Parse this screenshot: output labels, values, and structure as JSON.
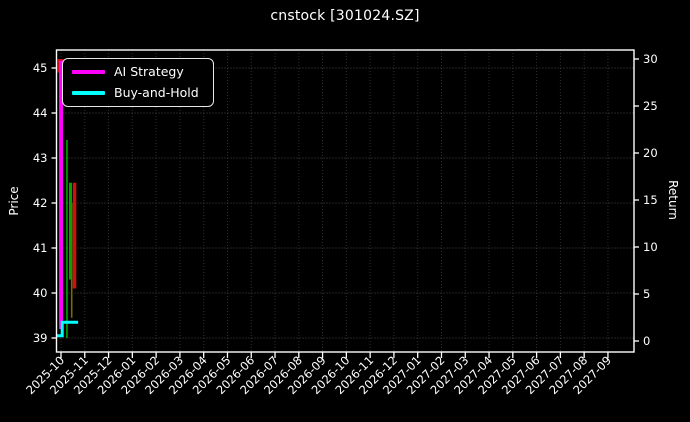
{
  "window": {
    "title": "cnstock [301024.SZ]"
  },
  "chart_data": {
    "type": "candlestick+line",
    "title": "cnstock [301024.SZ]",
    "background_color": "#000000",
    "text_color": "#ffffff",
    "grid": true,
    "grid_color_h": "#4a4a4a",
    "grid_color_v": "#2e2e2e",
    "spine_color": "#ffffff",
    "x_axis": {
      "rotation_deg": 45,
      "tick_labels": [
        "2025-10",
        "2025-11",
        "2025-12",
        "2026-01",
        "2026-02",
        "2026-03",
        "2026-04",
        "2026-05",
        "2026-06",
        "2026-07",
        "2026-08",
        "2026-09",
        "2026-10",
        "2026-11",
        "2026-12",
        "2027-01",
        "2027-02",
        "2027-03",
        "2027-04",
        "2027-05",
        "2027-06",
        "2027-07",
        "2027-08",
        "2027-09"
      ]
    },
    "y_left": {
      "label": "Price",
      "ticks": [
        39,
        40,
        41,
        42,
        43,
        44,
        45
      ],
      "range": [
        38.7,
        45.4
      ]
    },
    "y_right": {
      "label": "Return",
      "ticks": [
        0,
        5,
        10,
        15,
        20,
        25,
        30
      ],
      "range": [
        -1.2,
        31.0
      ]
    },
    "legend": {
      "position": "upper-left",
      "items": [
        {
          "label": "AI Strategy",
          "color": "#ff00ff"
        },
        {
          "label": "Buy-and-Hold",
          "color": "#00ffff"
        }
      ]
    },
    "series": [
      {
        "name": "AI Strategy",
        "color": "#ff00ff",
        "width": 4,
        "axis": "left",
        "points": [
          [
            0.0,
            39.2
          ],
          [
            0.0,
            45.12
          ],
          [
            0.75,
            45.12
          ]
        ]
      },
      {
        "name": "Buy-and-Hold",
        "color": "#00ffff",
        "width": 3,
        "axis": "left",
        "points": [
          [
            -0.21,
            39.05
          ],
          [
            0.05,
            39.05
          ],
          [
            0.05,
            39.35
          ],
          [
            0.72,
            39.35
          ]
        ]
      }
    ],
    "candles_note": "t = months after 2025-10 tick; high/low on Price axis",
    "candles": [
      {
        "t": -0.02,
        "high": 45.2,
        "low": 44.9,
        "color": "#cc1111",
        "w": 6
      },
      {
        "t": 0.25,
        "high": 43.4,
        "low": 39.0,
        "color": "#00a500",
        "w": 1.6
      },
      {
        "t": 0.4,
        "high": 42.45,
        "low": 40.3,
        "color": "#00a500",
        "w": 3
      },
      {
        "t": 0.45,
        "high": 42.0,
        "low": 39.45,
        "color": "#7a6a00",
        "w": 1.6
      },
      {
        "t": 0.57,
        "high": 42.45,
        "low": 40.1,
        "color": "#cc1111",
        "w": 3.5
      }
    ]
  }
}
